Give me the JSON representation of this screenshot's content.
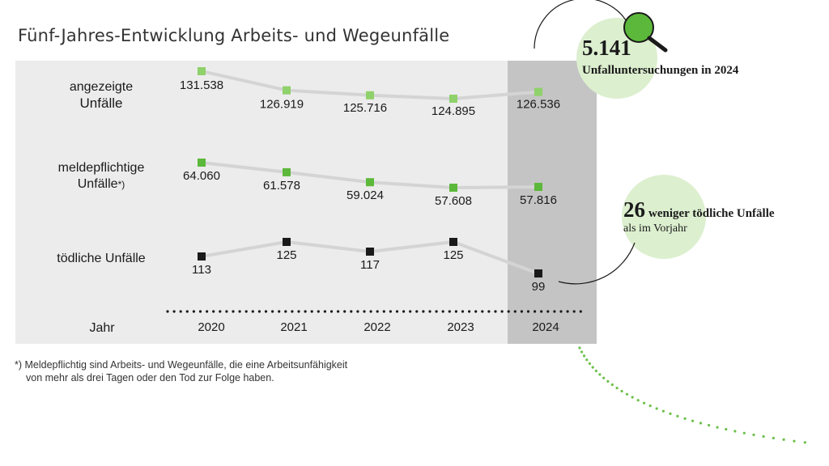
{
  "title": "Fünf-Jahres-Entwicklung Arbeits- und Wegeunfälle",
  "row_labels": {
    "reported_line1": "angezeigte",
    "reported_line2": "Unfälle",
    "notifiable_line1": "meldepflichtige",
    "notifiable_line2": "Unfälle",
    "notifiable_mark": "*)",
    "fatal": "tödliche Unfälle",
    "year": "Jahr"
  },
  "footnote": {
    "line1": "*) Meldepflichtig sind Arbeits- und Wegeunfälle, die eine Arbeitsunfähigkeit",
    "line2": "von mehr als drei Tagen oder den Tod zur Folge haben."
  },
  "stat_investigations": {
    "value": "5.141",
    "text": "Unfalluntersuchungen in 2024"
  },
  "stat_fatal": {
    "value": "26",
    "text1": "weniger tödliche Unfälle",
    "text2": "als im Vorjahr"
  },
  "colors": {
    "panel": "#ececec",
    "highlight": "#c4c4c4",
    "light_green": "#8fd16a",
    "green": "#5cb83a",
    "black": "#1a1a1a",
    "line": "#d4d4d4",
    "bubble": "#dcefcf",
    "dotted_green": "#6cc04a"
  },
  "chart_data": {
    "type": "line",
    "categories": [
      "2020",
      "2021",
      "2022",
      "2023",
      "2024"
    ],
    "series": [
      {
        "name": "angezeigte Unfälle",
        "values": [
          131538,
          126919,
          125716,
          124895,
          126536
        ],
        "labels": [
          "131.538",
          "126.919",
          "125.716",
          "124.895",
          "126.536"
        ]
      },
      {
        "name": "meldepflichtige Unfälle*)",
        "values": [
          64060,
          61578,
          59024,
          57608,
          57816
        ],
        "labels": [
          "64.060",
          "61.578",
          "59.024",
          "57.608",
          "57.816"
        ]
      },
      {
        "name": "tödliche Unfälle",
        "values": [
          113,
          125,
          117,
          125,
          99
        ],
        "labels": [
          "113",
          "125",
          "117",
          "125",
          "99"
        ]
      }
    ],
    "highlighted_category": "2024",
    "xlabel": "Jahr"
  }
}
